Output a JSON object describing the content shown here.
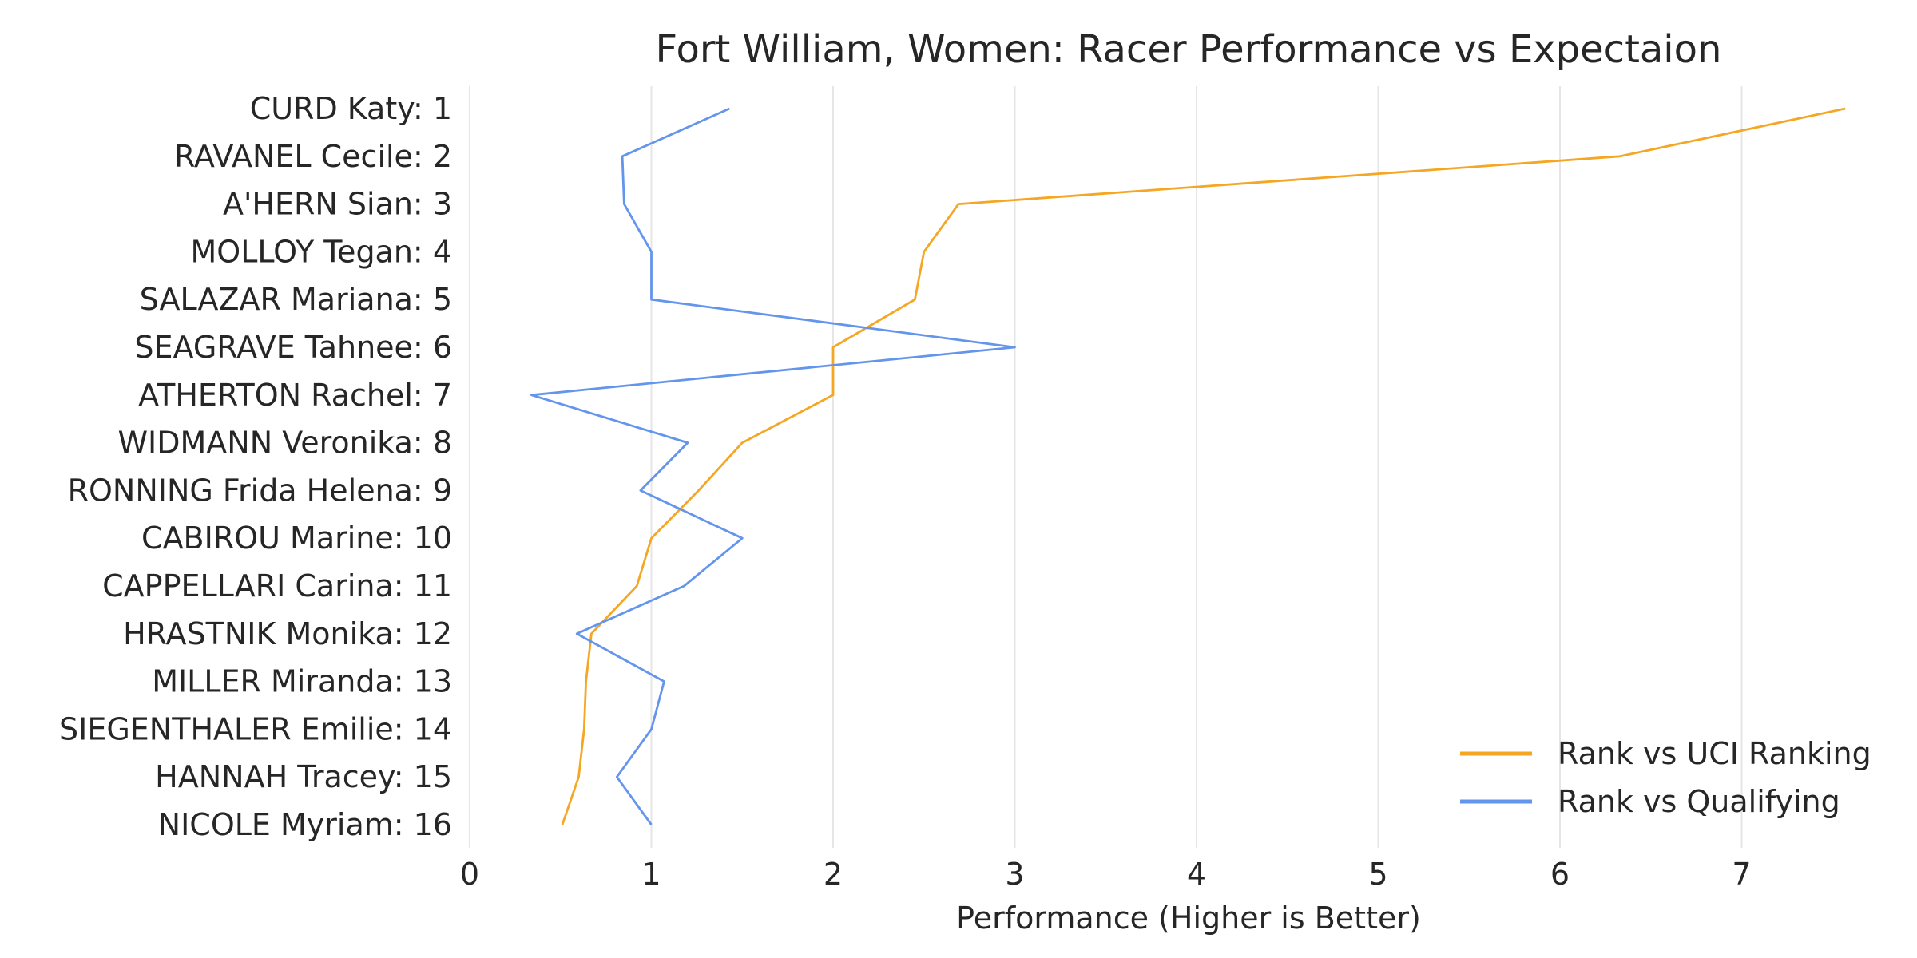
{
  "chart_data": {
    "type": "line",
    "title": "Fort William, Women: Racer Performance vs Expectaion",
    "xlabel": "Performance (Higher is Better)",
    "ylabel": "",
    "xlim": [
      0,
      7.8
    ],
    "xticks": [
      "0",
      "1",
      "2",
      "3",
      "4",
      "5",
      "6",
      "7"
    ],
    "grid": "vertical",
    "legend_position": "bottom-right",
    "categories": [
      "CURD Katy: 1",
      "RAVANEL Cecile: 2",
      "A'HERN Sian: 3",
      "MOLLOY Tegan: 4",
      "SALAZAR Mariana: 5",
      "SEAGRAVE Tahnee: 6",
      "ATHERTON Rachel: 7",
      "WIDMANN Veronika: 8",
      "RONNING Frida Helena: 9",
      "CABIROU Marine: 10",
      "CAPPELLARI Carina: 11",
      "HRASTNIK Monika: 12",
      "MILLER Miranda: 13",
      "SIEGENTHALER Emilie: 14",
      "HANNAH Tracey: 15",
      "NICOLE Myriam: 16"
    ],
    "series": [
      {
        "name": "Rank vs UCI Ranking",
        "color": "#f5a623",
        "values": [
          7.57,
          6.33,
          2.69,
          2.5,
          2.45,
          2.0,
          2.0,
          1.5,
          1.26,
          1.0,
          0.92,
          0.67,
          0.64,
          0.63,
          0.6,
          0.51
        ]
      },
      {
        "name": "Rank vs Qualifying",
        "color": "#6495ed",
        "values": [
          1.43,
          0.84,
          0.85,
          1.0,
          1.0,
          3.0,
          0.34,
          1.2,
          0.94,
          1.5,
          1.18,
          0.59,
          1.07,
          1.0,
          0.81,
          1.0
        ]
      }
    ]
  }
}
